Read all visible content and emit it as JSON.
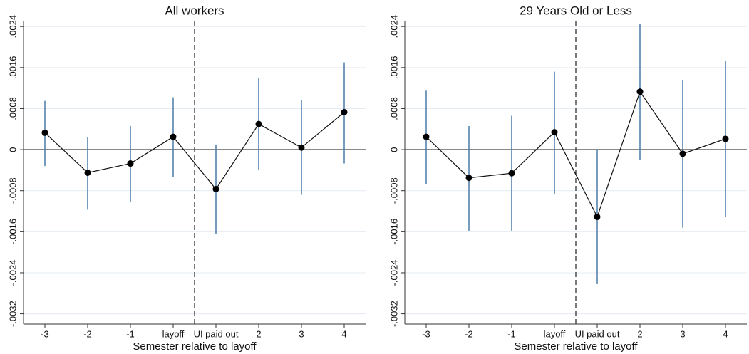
{
  "chart_data": [
    {
      "type": "errorbar",
      "title": "All workers",
      "x_label": "Semester relative to layoff",
      "categories": [
        "-3",
        "-2",
        "-1",
        "layoff",
        "UI paid out",
        "2",
        "3",
        "4"
      ],
      "values": [
        0.00033,
        -0.00045,
        -0.00027,
        0.00025,
        -0.00077,
        0.0005,
        4e-05,
        0.00073
      ],
      "lower": [
        -0.00032,
        -0.00117,
        -0.00102,
        -0.00053,
        -0.00165,
        -0.0004,
        -0.00088,
        -0.00027
      ],
      "upper": [
        0.00095,
        0.00025,
        0.00046,
        0.00102,
        0.0001,
        0.0014,
        0.00097,
        0.0017
      ],
      "color": "#4a7ba7",
      "point_color": "#000000",
      "ylim": [
        -0.0034,
        0.0025
      ],
      "yticks": [
        {
          "value": -0.0032,
          "label": "-.0032"
        },
        {
          "value": -0.0024,
          "label": "-.0024"
        },
        {
          "value": -0.0016,
          "label": "-.0016"
        },
        {
          "value": -0.0008,
          "label": "-.0008"
        },
        0,
        {
          "value": 0.0008,
          "label": ".0008"
        },
        {
          "value": 0.0016,
          "label": ".0016"
        },
        {
          "value": 0.0024,
          "label": ".0024"
        }
      ],
      "grid": true
    },
    {
      "type": "errorbar",
      "title": "29 Years Old or Less",
      "x_label": "Semester relative to layoff",
      "categories": [
        "-3",
        "-2",
        "-1",
        "layoff",
        "UI paid out",
        "2",
        "3",
        "4"
      ],
      "values": [
        0.00025,
        -0.00055,
        -0.00046,
        0.00034,
        -0.00131,
        0.00113,
        -8e-05,
        0.00021
      ],
      "lower": [
        -0.00067,
        -0.00158,
        -0.00158,
        -0.00087,
        -0.00262,
        -0.0002,
        -0.00152,
        -0.00131
      ],
      "upper": [
        0.00115,
        0.00046,
        0.00066,
        0.00152,
        0,
        0.00245,
        0.00136,
        0.00173
      ],
      "color": "#4a7ba7",
      "point_color": "#000000",
      "ylim": [
        -0.0034,
        0.0025
      ],
      "yticks": [
        {
          "value": -0.0032,
          "label": "-.0032"
        },
        {
          "value": -0.0024,
          "label": "-.0024"
        },
        {
          "value": -0.0016,
          "label": "-.0016"
        },
        {
          "value": -0.0008,
          "label": "-.0008"
        },
        0,
        {
          "value": 0.0008,
          "label": ".0008"
        },
        {
          "value": 0.0016,
          "label": ".0016"
        },
        {
          "value": 0.0024,
          "label": ".0024"
        }
      ],
      "grid": true
    }
  ]
}
